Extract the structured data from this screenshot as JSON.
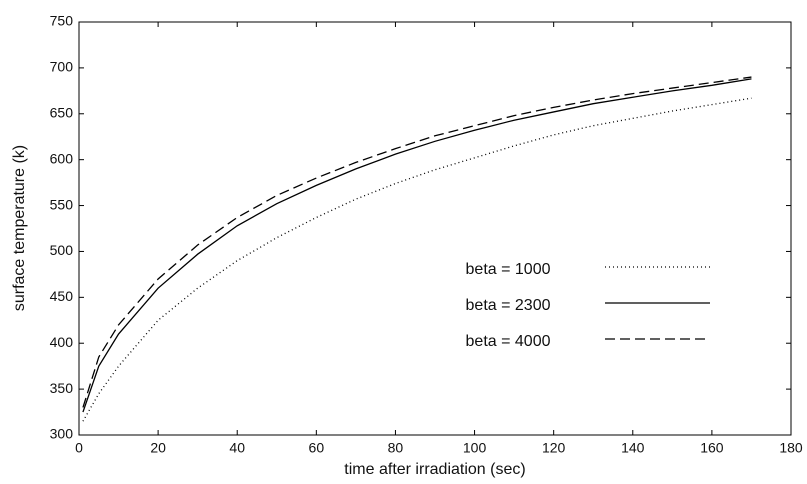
{
  "chart_data": {
    "type": "line",
    "xlabel": "time after irradiation (sec)",
    "ylabel": "surface temperature (k)",
    "x": [
      1,
      5,
      10,
      20,
      30,
      40,
      50,
      60,
      70,
      80,
      90,
      100,
      110,
      120,
      130,
      140,
      150,
      160,
      170
    ],
    "series": [
      {
        "name": "beta = 1000",
        "color": "#000000",
        "dash": "dotted",
        "values": [
          315,
          345,
          375,
          425,
          460,
          490,
          515,
          537,
          557,
          574,
          589,
          602,
          615,
          627,
          637,
          645,
          653,
          660,
          667
        ]
      },
      {
        "name": "beta = 2300",
        "color": "#000000",
        "dash": "solid",
        "values": [
          325,
          375,
          410,
          460,
          497,
          528,
          552,
          572,
          590,
          606,
          620,
          632,
          643,
          652,
          661,
          668,
          675,
          681,
          688
        ]
      },
      {
        "name": "beta = 4000",
        "color": "#000000",
        "dash": "dashed",
        "values": [
          330,
          385,
          420,
          470,
          507,
          537,
          561,
          580,
          597,
          612,
          626,
          637,
          648,
          657,
          665,
          672,
          678,
          684,
          690
        ]
      }
    ],
    "xlim": [
      0,
      180
    ],
    "xticks": [
      0,
      20,
      40,
      60,
      80,
      100,
      120,
      140,
      160,
      180
    ],
    "ylim": [
      300,
      750
    ],
    "yticks": [
      300,
      350,
      400,
      450,
      500,
      550,
      600,
      650,
      700,
      750
    ],
    "grid": false,
    "legend": "right"
  }
}
